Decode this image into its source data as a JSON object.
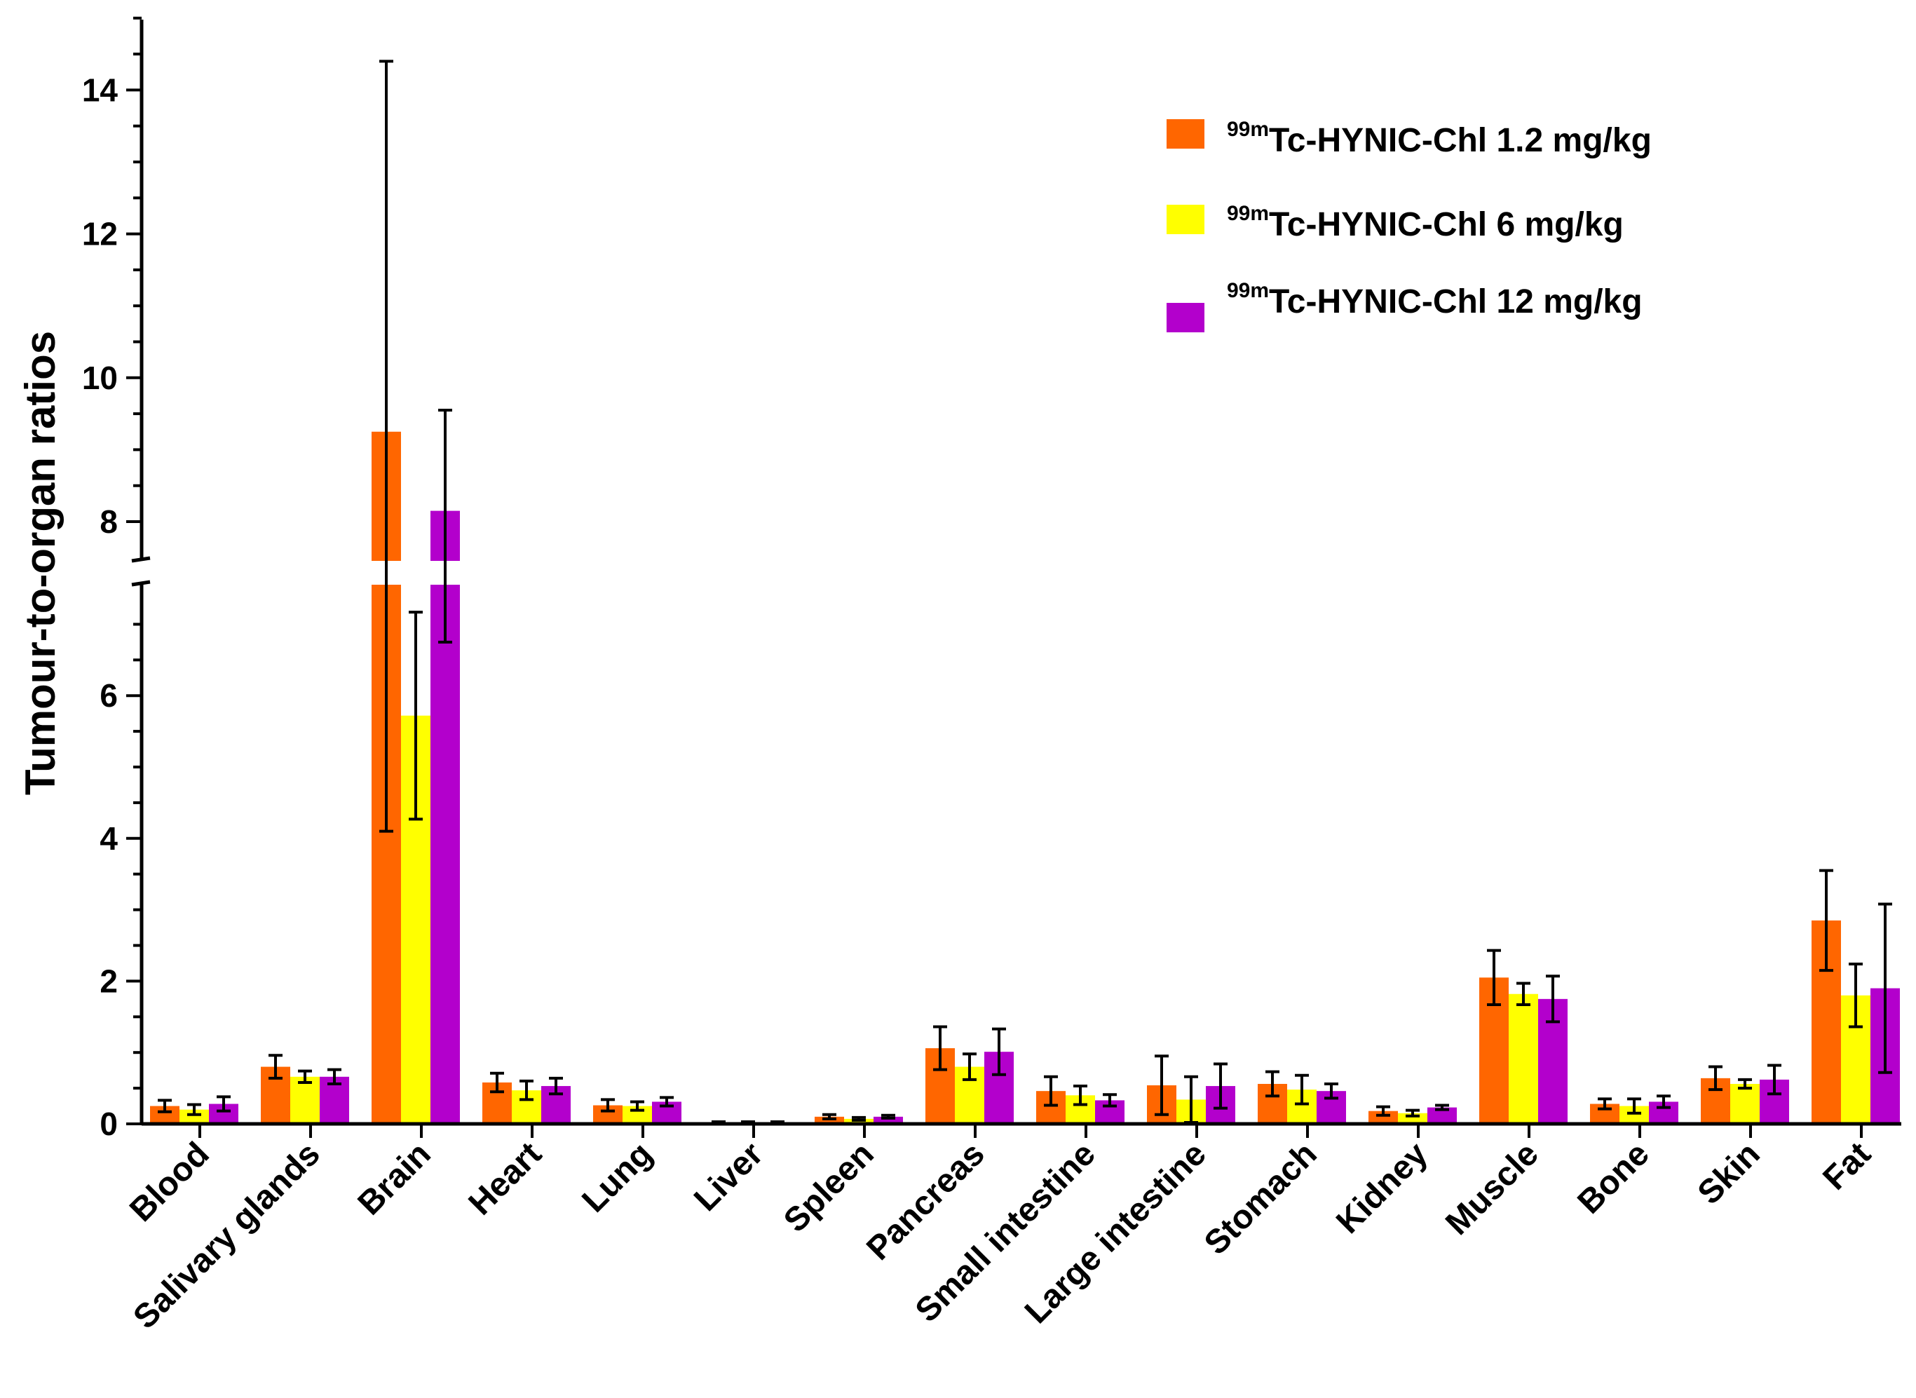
{
  "chart_data": {
    "type": "bar",
    "title": "",
    "xlabel": "",
    "ylabel": "Tumour-to-organ ratios",
    "axis_break": {
      "lower_range": [
        0,
        7.5
      ],
      "upper_range": [
        7.5,
        15
      ]
    },
    "ylim": [
      0,
      15
    ],
    "yticks": [
      0,
      2,
      4,
      6,
      8,
      10,
      12,
      14
    ],
    "tick_labels": [
      "0",
      "2",
      "4",
      "6",
      "8",
      "10",
      "12",
      "14"
    ],
    "legend_position": "top-right",
    "categories": [
      "Blood",
      "Salivary glands",
      "Brain",
      "Heart",
      "Lung",
      "Liver",
      "Spleen",
      "Pancreas",
      "Small intestine",
      "Large intestine",
      "Stomach",
      "Kidney",
      "Muscle",
      "Bone",
      "Skin",
      "Fat"
    ],
    "series": [
      {
        "name": "99mTc-HYNIC-Chl 1.2 mg/kg",
        "sup": "99m",
        "label": "Tc-HYNIC-Chl 1.2 mg/kg",
        "color": "#FF6600",
        "values": [
          0.25,
          0.8,
          9.25,
          0.58,
          0.26,
          0.02,
          0.1,
          1.06,
          0.46,
          0.54,
          0.56,
          0.18,
          2.05,
          0.28,
          0.64,
          2.85
        ],
        "errors": [
          0.08,
          0.16,
          5.15,
          0.13,
          0.08,
          0.01,
          0.03,
          0.3,
          0.2,
          0.41,
          0.17,
          0.06,
          0.38,
          0.07,
          0.16,
          0.7
        ]
      },
      {
        "name": "99mTc-HYNIC-Chl 6 mg/kg",
        "sup": "99m",
        "label": "Tc-HYNIC-Chl 6 mg/kg",
        "color": "#FFFF00",
        "values": [
          0.2,
          0.66,
          5.72,
          0.47,
          0.25,
          0.02,
          0.07,
          0.8,
          0.4,
          0.34,
          0.48,
          0.15,
          1.82,
          0.25,
          0.56,
          1.8
        ],
        "errors": [
          0.07,
          0.08,
          1.45,
          0.13,
          0.06,
          0.01,
          0.02,
          0.18,
          0.13,
          0.32,
          0.2,
          0.04,
          0.15,
          0.1,
          0.06,
          0.44
        ]
      },
      {
        "name": "99mTc-HYNIC-Chl 12 mg/kg",
        "sup": "99m",
        "label": "Tc-HYNIC-Chl 12 mg/kg",
        "color": "#B300CC",
        "values": [
          0.28,
          0.66,
          8.15,
          0.53,
          0.31,
          0.02,
          0.1,
          1.01,
          0.33,
          0.53,
          0.46,
          0.23,
          1.75,
          0.31,
          0.62,
          1.9
        ],
        "errors": [
          0.1,
          0.1,
          1.4,
          0.11,
          0.06,
          0.01,
          0.02,
          0.32,
          0.08,
          0.31,
          0.1,
          0.03,
          0.32,
          0.08,
          0.2,
          1.18
        ]
      }
    ]
  }
}
